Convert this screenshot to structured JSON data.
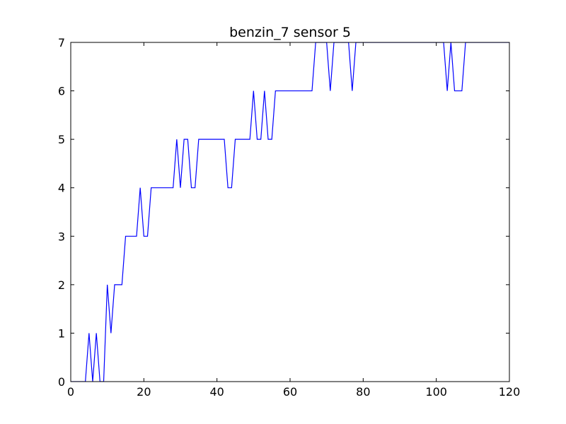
{
  "chart_data": {
    "type": "line",
    "title": "benzin_7 sensor 5",
    "xlabel": "",
    "ylabel": "",
    "xlim": [
      0,
      120
    ],
    "ylim": [
      0,
      7
    ],
    "xticks": [
      "0",
      "20",
      "40",
      "60",
      "80",
      "100",
      "120"
    ],
    "yticks": [
      "0",
      "1",
      "2",
      "3",
      "4",
      "5",
      "6",
      "7"
    ],
    "grid": false,
    "legend": "none",
    "series": [
      {
        "color": "#0000ff",
        "x": [
          0,
          1,
          2,
          3,
          4,
          5,
          6,
          7,
          8,
          9,
          10,
          11,
          12,
          13,
          14,
          15,
          16,
          17,
          18,
          19,
          20,
          21,
          22,
          23,
          24,
          25,
          26,
          27,
          28,
          29,
          30,
          31,
          32,
          33,
          34,
          35,
          36,
          37,
          38,
          39,
          40,
          41,
          42,
          43,
          44,
          45,
          46,
          47,
          48,
          49,
          50,
          51,
          52,
          53,
          54,
          55,
          56,
          57,
          58,
          59,
          60,
          61,
          62,
          63,
          64,
          65,
          66,
          67,
          68,
          69,
          70,
          71,
          72,
          73,
          74,
          75,
          76,
          77,
          78,
          79,
          80,
          81,
          82,
          83,
          84,
          85,
          86,
          87,
          88,
          89,
          90,
          91,
          92,
          93,
          94,
          95,
          96,
          97,
          98,
          99,
          100,
          101,
          102,
          103,
          104,
          105,
          106,
          107,
          108,
          109,
          110,
          111,
          112,
          113,
          114,
          115,
          116,
          117,
          118,
          119,
          120
        ],
        "y": [
          0,
          0,
          0,
          0,
          0,
          1,
          0,
          1,
          0,
          0,
          2,
          1,
          2,
          2,
          2,
          3,
          3,
          3,
          3,
          4,
          3,
          3,
          4,
          4,
          4,
          4,
          4,
          4,
          4,
          5,
          4,
          5,
          5,
          4,
          4,
          5,
          5,
          5,
          5,
          5,
          5,
          5,
          5,
          4,
          4,
          5,
          5,
          5,
          5,
          5,
          6,
          5,
          5,
          6,
          5,
          5,
          6,
          6,
          6,
          6,
          6,
          6,
          6,
          6,
          6,
          6,
          6,
          7,
          7,
          7,
          7,
          6,
          7,
          7,
          7,
          7,
          7,
          6,
          7,
          7,
          7,
          7,
          7,
          7,
          7,
          7,
          7,
          7,
          7,
          7,
          7,
          7,
          7,
          7,
          7,
          7,
          7,
          7,
          7,
          7,
          7,
          7,
          7,
          6,
          7,
          6,
          6,
          6,
          7,
          7,
          7,
          7,
          7,
          7,
          7,
          7,
          7,
          7,
          7,
          7,
          7
        ]
      }
    ]
  }
}
